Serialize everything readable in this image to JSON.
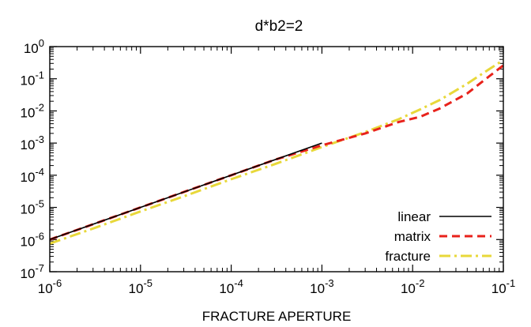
{
  "chart_data": {
    "type": "line",
    "title": "d*b2=2",
    "xlabel": "FRACTURE APERTURE",
    "ylabel": "",
    "x_scale": "log",
    "y_scale": "log",
    "xlim": [
      1e-06,
      0.1
    ],
    "ylim": [
      1e-07,
      1
    ],
    "grid": false,
    "legend_position": "bottom-right",
    "x_ticks": [
      {
        "value": 1e-06,
        "base": "10",
        "exp": "-6"
      },
      {
        "value": 1e-05,
        "base": "10",
        "exp": "-5"
      },
      {
        "value": 0.0001,
        "base": "10",
        "exp": "-4"
      },
      {
        "value": 0.001,
        "base": "10",
        "exp": "-3"
      },
      {
        "value": 0.01,
        "base": "10",
        "exp": "-2"
      },
      {
        "value": 0.1,
        "base": "10",
        "exp": "-1"
      }
    ],
    "y_ticks": [
      {
        "value": 1e-07,
        "base": "10",
        "exp": "-7"
      },
      {
        "value": 1e-06,
        "base": "10",
        "exp": "-6"
      },
      {
        "value": 1e-05,
        "base": "10",
        "exp": "-5"
      },
      {
        "value": 0.0001,
        "base": "10",
        "exp": "-4"
      },
      {
        "value": 0.001,
        "base": "10",
        "exp": "-3"
      },
      {
        "value": 0.01,
        "base": "10",
        "exp": "-2"
      },
      {
        "value": 0.1,
        "base": "10",
        "exp": "-1"
      },
      {
        "value": 1,
        "base": "10",
        "exp": "0"
      }
    ],
    "series": [
      {
        "name": "linear",
        "color": "#000000",
        "dash": "solid",
        "x": [
          1e-06,
          0.001
        ],
        "y": [
          1e-06,
          0.001
        ]
      },
      {
        "name": "matrix",
        "color": "#e8221b",
        "dash": "dashed",
        "x": [
          1e-06,
          3e-06,
          1e-05,
          3e-05,
          0.0001,
          0.0003,
          0.001,
          0.003,
          0.007,
          0.012,
          0.02,
          0.04,
          0.07,
          0.1
        ],
        "y": [
          1e-06,
          3e-06,
          1e-05,
          3e-05,
          0.0001,
          0.0003,
          0.00085,
          0.002,
          0.0045,
          0.0065,
          0.012,
          0.035,
          0.12,
          0.26
        ]
      },
      {
        "name": "fracture",
        "color": "#e8d83a",
        "dash": "dashdot",
        "x": [
          1e-06,
          3e-06,
          1e-05,
          3e-05,
          0.0001,
          0.0003,
          0.001,
          0.003,
          0.007,
          0.012,
          0.02,
          0.04,
          0.07,
          0.1
        ],
        "y": [
          7.5e-07,
          2.2e-06,
          7.5e-06,
          2.2e-05,
          7.5e-05,
          0.00022,
          0.00075,
          0.0022,
          0.0055,
          0.011,
          0.022,
          0.07,
          0.2,
          0.38
        ]
      }
    ]
  }
}
